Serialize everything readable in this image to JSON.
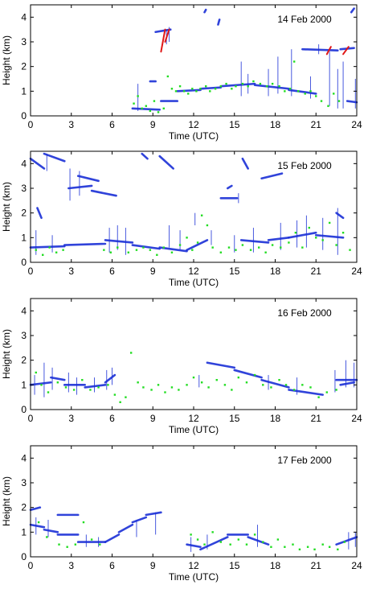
{
  "chart_data": [
    {
      "type": "scatter",
      "date_label": "14 Feb 2000",
      "xlabel": "Time (UTC)",
      "ylabel": "Height (km)",
      "xlim": [
        0,
        24
      ],
      "ylim": [
        0,
        4.5
      ],
      "xticks": [
        0,
        3,
        6,
        9,
        12,
        15,
        18,
        21,
        24
      ],
      "yticks": [
        0,
        1,
        2,
        3,
        4
      ],
      "colors": {
        "cloud": "#1a2fd6",
        "green": "#22dd22",
        "red": "#e01818",
        "axis": "#000000"
      },
      "cloud_segments": [
        [
          7.5,
          0.3,
          9.5,
          0.25
        ],
        [
          9.6,
          0.6,
          10.8,
          0.6
        ],
        [
          9.2,
          3.4,
          10.3,
          3.5
        ],
        [
          8.8,
          1.4,
          9.2,
          1.4
        ],
        [
          10.8,
          1.0,
          12.5,
          1.05
        ],
        [
          12.5,
          1.1,
          14.0,
          1.15
        ],
        [
          14.0,
          1.2,
          16.5,
          1.3
        ],
        [
          16.5,
          1.25,
          19.0,
          1.1
        ],
        [
          19.0,
          1.05,
          21.0,
          0.9
        ],
        [
          20.0,
          2.7,
          22.6,
          2.65
        ],
        [
          22.8,
          2.7,
          23.8,
          2.75
        ],
        [
          23.3,
          0.6,
          24.0,
          0.55
        ],
        [
          12.8,
          4.2,
          12.9,
          4.3
        ],
        [
          13.8,
          3.7,
          13.9,
          3.9
        ],
        [
          23.6,
          4.2,
          23.8,
          4.35
        ]
      ],
      "cloud_columns": [
        [
          7.9,
          0.2,
          1.3
        ],
        [
          10.2,
          3.0,
          3.6
        ],
        [
          10.0,
          2.9,
          3.5
        ],
        [
          15.5,
          0.8,
          2.2
        ],
        [
          16.0,
          0.9,
          1.7
        ],
        [
          17.5,
          0.8,
          1.9
        ],
        [
          18.2,
          0.9,
          2.4
        ],
        [
          19.2,
          0.8,
          2.7
        ],
        [
          20.6,
          0.7,
          1.6
        ],
        [
          22.0,
          0.4,
          2.6
        ],
        [
          22.6,
          0.3,
          1.9
        ],
        [
          23.0,
          0.3,
          2.2
        ],
        [
          21.2,
          2.5,
          2.9
        ],
        [
          23.9,
          0.3,
          1.5
        ]
      ],
      "red_segments": [
        [
          9.6,
          2.6,
          9.9,
          3.5
        ],
        [
          9.9,
          3.0,
          10.2,
          3.5
        ],
        [
          21.8,
          2.5,
          22.1,
          2.8
        ],
        [
          23.0,
          2.5,
          23.4,
          2.8
        ]
      ],
      "green_points": [
        [
          7.6,
          0.5
        ],
        [
          7.9,
          0.8
        ],
        [
          8.2,
          0.3
        ],
        [
          8.5,
          0.4
        ],
        [
          8.8,
          0.2
        ],
        [
          9.1,
          0.6
        ],
        [
          9.4,
          0.15
        ],
        [
          9.8,
          0.3
        ],
        [
          10.1,
          1.6
        ],
        [
          10.4,
          1.1
        ],
        [
          10.7,
          1.0
        ],
        [
          11.0,
          1.2
        ],
        [
          11.3,
          1.0
        ],
        [
          11.6,
          0.9
        ],
        [
          11.9,
          1.1
        ],
        [
          12.2,
          1.0
        ],
        [
          12.5,
          1.1
        ],
        [
          12.9,
          1.2
        ],
        [
          13.2,
          1.0
        ],
        [
          13.6,
          1.1
        ],
        [
          14.0,
          1.2
        ],
        [
          14.4,
          1.3
        ],
        [
          14.8,
          1.1
        ],
        [
          15.1,
          1.2
        ],
        [
          15.6,
          1.3
        ],
        [
          16.0,
          1.2
        ],
        [
          16.4,
          1.4
        ],
        [
          16.9,
          1.3
        ],
        [
          17.4,
          1.2
        ],
        [
          17.8,
          1.3
        ],
        [
          18.3,
          1.2
        ],
        [
          18.7,
          1.0
        ],
        [
          19.1,
          1.1
        ],
        [
          19.4,
          2.2
        ],
        [
          19.7,
          1.0
        ],
        [
          20.2,
          0.9
        ],
        [
          20.6,
          1.0
        ],
        [
          21.0,
          0.8
        ],
        [
          21.4,
          0.6
        ],
        [
          21.9,
          0.4
        ],
        [
          22.3,
          0.9
        ],
        [
          22.7,
          0.6
        ]
      ]
    },
    {
      "type": "scatter",
      "date_label": "15 Feb 2000",
      "xlabel": "Time (UTC)",
      "ylabel": "Height (km)",
      "xlim": [
        0,
        24
      ],
      "ylim": [
        0,
        4.5
      ],
      "xticks": [
        0,
        3,
        6,
        9,
        12,
        15,
        18,
        21,
        24
      ],
      "yticks": [
        0,
        1,
        2,
        3,
        4
      ],
      "colors": {
        "cloud": "#1a2fd6",
        "green": "#22dd22",
        "red": "#e01818",
        "axis": "#000000"
      },
      "cloud_segments": [
        [
          0.0,
          4.2,
          1.0,
          3.8
        ],
        [
          1.0,
          4.4,
          2.5,
          4.1
        ],
        [
          2.8,
          3.0,
          4.5,
          3.1
        ],
        [
          4.5,
          2.9,
          6.3,
          2.7
        ],
        [
          3.5,
          3.5,
          5.0,
          3.3
        ],
        [
          0.5,
          2.2,
          0.8,
          1.8
        ],
        [
          9.5,
          4.3,
          10.5,
          3.8
        ],
        [
          14.0,
          2.6,
          15.2,
          2.6
        ],
        [
          17.0,
          3.4,
          18.5,
          3.6
        ],
        [
          0.0,
          0.6,
          2.5,
          0.65
        ],
        [
          2.5,
          0.7,
          5.5,
          0.75
        ],
        [
          5.5,
          0.9,
          7.5,
          0.8
        ],
        [
          7.5,
          0.7,
          9.5,
          0.55
        ],
        [
          9.5,
          0.6,
          11.5,
          0.45
        ],
        [
          11.5,
          0.5,
          13.0,
          0.9
        ],
        [
          15.5,
          0.9,
          17.5,
          0.8
        ],
        [
          17.5,
          0.9,
          19.0,
          1.0
        ],
        [
          19.0,
          1.0,
          21.0,
          1.2
        ],
        [
          21.0,
          1.1,
          23.0,
          1.0
        ],
        [
          14.5,
          3.0,
          14.8,
          3.1
        ],
        [
          8.2,
          4.4,
          8.6,
          4.2
        ],
        [
          15.6,
          4.2,
          16.0,
          3.8
        ],
        [
          22.5,
          2.0,
          23.0,
          1.8
        ]
      ],
      "cloud_columns": [
        [
          0.4,
          0.3,
          1.3
        ],
        [
          1.6,
          0.4,
          1.1
        ],
        [
          2.9,
          2.5,
          3.8
        ],
        [
          3.6,
          2.7,
          3.7
        ],
        [
          5.8,
          0.4,
          1.4
        ],
        [
          6.4,
          0.5,
          1.5
        ],
        [
          7.0,
          0.3,
          1.4
        ],
        [
          10.2,
          0.6,
          1.5
        ],
        [
          11.0,
          0.5,
          1.3
        ],
        [
          13.3,
          0.7,
          1.3
        ],
        [
          15.0,
          0.4,
          1.1
        ],
        [
          16.4,
          0.4,
          1.4
        ],
        [
          18.4,
          0.5,
          1.6
        ],
        [
          19.6,
          0.6,
          1.7
        ],
        [
          20.3,
          0.6,
          1.9
        ],
        [
          21.5,
          0.5,
          1.8
        ],
        [
          22.6,
          0.3,
          2.2
        ],
        [
          1.2,
          3.7,
          4.4
        ],
        [
          15.3,
          2.4,
          2.8
        ],
        [
          12.1,
          1.5,
          2.0
        ]
      ],
      "red_segments": [],
      "green_points": [
        [
          0.4,
          0.5
        ],
        [
          0.9,
          0.3
        ],
        [
          1.4,
          0.6
        ],
        [
          1.9,
          0.4
        ],
        [
          2.4,
          0.5
        ],
        [
          5.4,
          0.5
        ],
        [
          5.9,
          0.4
        ],
        [
          6.4,
          0.6
        ],
        [
          7.2,
          0.4
        ],
        [
          7.8,
          0.5
        ],
        [
          8.3,
          0.6
        ],
        [
          8.8,
          0.5
        ],
        [
          9.3,
          0.3
        ],
        [
          9.8,
          0.6
        ],
        [
          10.4,
          0.4
        ],
        [
          11.0,
          0.7
        ],
        [
          11.5,
          1.0
        ],
        [
          11.9,
          0.5
        ],
        [
          12.3,
          0.8
        ],
        [
          12.6,
          1.9
        ],
        [
          13.0,
          1.5
        ],
        [
          13.4,
          0.6
        ],
        [
          14.0,
          0.4
        ],
        [
          14.6,
          0.6
        ],
        [
          15.1,
          0.5
        ],
        [
          15.6,
          0.7
        ],
        [
          16.2,
          0.5
        ],
        [
          16.8,
          0.6
        ],
        [
          17.3,
          0.4
        ],
        [
          17.8,
          0.7
        ],
        [
          18.4,
          0.6
        ],
        [
          19.0,
          0.8
        ],
        [
          19.5,
          1.2
        ],
        [
          20.0,
          0.6
        ],
        [
          20.5,
          1.4
        ],
        [
          21.0,
          1.0
        ],
        [
          21.5,
          0.9
        ],
        [
          22.0,
          1.6
        ],
        [
          22.5,
          0.7
        ],
        [
          23.0,
          1.2
        ],
        [
          23.5,
          0.5
        ]
      ]
    },
    {
      "type": "scatter",
      "date_label": "16 Feb 2000",
      "xlabel": "Time (UTC)",
      "ylabel": "Height (km)",
      "xlim": [
        0,
        24
      ],
      "ylim": [
        0,
        4.5
      ],
      "xticks": [
        0,
        3,
        6,
        9,
        12,
        15,
        18,
        21,
        24
      ],
      "yticks": [
        0,
        1,
        2,
        3,
        4
      ],
      "colors": {
        "cloud": "#1a2fd6",
        "green": "#22dd22",
        "red": "#e01818",
        "axis": "#000000"
      },
      "cloud_segments": [
        [
          0.0,
          1.0,
          1.5,
          1.1
        ],
        [
          1.5,
          1.3,
          2.5,
          1.2
        ],
        [
          2.5,
          1.0,
          4.0,
          1.0
        ],
        [
          4.0,
          0.9,
          5.5,
          1.0
        ],
        [
          5.5,
          1.1,
          6.2,
          1.4
        ],
        [
          13.0,
          1.9,
          15.0,
          1.7
        ],
        [
          15.0,
          1.6,
          17.0,
          1.3
        ],
        [
          17.0,
          1.2,
          19.0,
          0.9
        ],
        [
          19.0,
          0.8,
          21.5,
          0.6
        ],
        [
          22.5,
          1.2,
          24.0,
          1.2
        ],
        [
          22.8,
          1.0,
          23.8,
          1.1
        ]
      ],
      "cloud_columns": [
        [
          0.3,
          0.6,
          1.4
        ],
        [
          1.0,
          0.5,
          1.9
        ],
        [
          1.6,
          0.8,
          1.7
        ],
        [
          2.8,
          0.7,
          1.5
        ],
        [
          3.4,
          0.6,
          1.3
        ],
        [
          4.7,
          0.7,
          1.3
        ],
        [
          5.6,
          0.8,
          1.6
        ],
        [
          6.0,
          1.0,
          1.7
        ],
        [
          12.4,
          0.9,
          1.4
        ],
        [
          17.5,
          0.8,
          1.4
        ],
        [
          19.6,
          0.6,
          1.3
        ],
        [
          22.4,
          0.7,
          1.6
        ],
        [
          23.2,
          0.9,
          2.0
        ],
        [
          23.8,
          0.9,
          1.9
        ]
      ],
      "red_segments": [],
      "green_points": [
        [
          0.4,
          1.5
        ],
        [
          0.8,
          1.0
        ],
        [
          1.3,
          0.7
        ],
        [
          2.0,
          1.1
        ],
        [
          2.6,
          0.9
        ],
        [
          3.2,
          0.8
        ],
        [
          3.8,
          1.2
        ],
        [
          4.4,
          0.8
        ],
        [
          5.0,
          0.9
        ],
        [
          5.7,
          1.0
        ],
        [
          6.2,
          0.6
        ],
        [
          6.6,
          0.3
        ],
        [
          7.0,
          0.5
        ],
        [
          7.4,
          2.3
        ],
        [
          7.9,
          1.1
        ],
        [
          8.3,
          0.9
        ],
        [
          8.9,
          0.8
        ],
        [
          9.4,
          1.0
        ],
        [
          9.9,
          0.7
        ],
        [
          10.4,
          0.9
        ],
        [
          10.9,
          0.8
        ],
        [
          11.5,
          1.0
        ],
        [
          12.0,
          1.3
        ],
        [
          12.6,
          1.1
        ],
        [
          13.1,
          0.9
        ],
        [
          13.7,
          1.2
        ],
        [
          14.3,
          1.0
        ],
        [
          14.8,
          0.8
        ],
        [
          15.3,
          1.3
        ],
        [
          15.9,
          1.1
        ],
        [
          16.5,
          1.4
        ],
        [
          17.1,
          1.0
        ],
        [
          17.7,
          0.9
        ],
        [
          18.3,
          1.2
        ],
        [
          18.8,
          1.0
        ],
        [
          19.4,
          0.8
        ],
        [
          20.0,
          1.0
        ],
        [
          20.6,
          0.9
        ],
        [
          21.2,
          0.5
        ],
        [
          21.8,
          0.7
        ],
        [
          22.5,
          0.8
        ]
      ]
    },
    {
      "type": "scatter",
      "date_label": "17 Feb 2000",
      "xlabel": "Time (UTC)",
      "ylabel": "Height (km)",
      "xlim": [
        0,
        24
      ],
      "ylim": [
        0,
        4.5
      ],
      "xticks": [
        0,
        3,
        6,
        9,
        12,
        15,
        18,
        21,
        24
      ],
      "yticks": [
        0,
        1,
        2,
        3,
        4
      ],
      "colors": {
        "cloud": "#1a2fd6",
        "green": "#22dd22",
        "red": "#e01818",
        "axis": "#000000"
      },
      "cloud_segments": [
        [
          0.0,
          1.9,
          0.7,
          2.0
        ],
        [
          0.0,
          1.3,
          1.0,
          1.2
        ],
        [
          1.0,
          1.1,
          2.0,
          1.0
        ],
        [
          2.0,
          1.7,
          3.5,
          1.7
        ],
        [
          2.0,
          0.9,
          3.5,
          0.9
        ],
        [
          3.5,
          0.6,
          5.5,
          0.6
        ],
        [
          5.5,
          0.6,
          6.5,
          0.9
        ],
        [
          6.5,
          1.0,
          7.5,
          1.3
        ],
        [
          7.5,
          1.4,
          8.5,
          1.6
        ],
        [
          8.5,
          1.7,
          9.6,
          1.8
        ],
        [
          11.5,
          0.5,
          12.5,
          0.4
        ],
        [
          12.5,
          0.3,
          14.5,
          0.8
        ],
        [
          14.5,
          0.9,
          16.0,
          0.9
        ],
        [
          16.0,
          0.8,
          17.5,
          0.5
        ],
        [
          22.5,
          0.5,
          24.0,
          0.8
        ]
      ],
      "cloud_columns": [
        [
          0.4,
          0.9,
          1.6
        ],
        [
          1.3,
          0.8,
          1.5
        ],
        [
          4.1,
          0.4,
          0.9
        ],
        [
          5.0,
          0.4,
          0.8
        ],
        [
          7.8,
          0.8,
          1.5
        ],
        [
          9.2,
          0.9,
          1.8
        ],
        [
          11.8,
          0.2,
          0.8
        ],
        [
          13.0,
          0.3,
          0.9
        ],
        [
          16.7,
          0.4,
          1.3
        ],
        [
          23.4,
          0.3,
          1.0
        ],
        [
          23.9,
          0.4,
          1.0
        ]
      ],
      "red_segments": [],
      "green_points": [
        [
          0.6,
          1.4
        ],
        [
          1.2,
          0.8
        ],
        [
          2.1,
          0.5
        ],
        [
          2.7,
          0.4
        ],
        [
          3.3,
          0.5
        ],
        [
          3.9,
          1.4
        ],
        [
          4.5,
          0.7
        ],
        [
          5.1,
          0.5
        ],
        [
          11.8,
          0.9
        ],
        [
          12.3,
          0.7
        ],
        [
          12.8,
          0.5
        ],
        [
          13.4,
          1.0
        ],
        [
          14.0,
          0.6
        ],
        [
          14.7,
          0.5
        ],
        [
          15.3,
          0.7
        ],
        [
          15.9,
          0.5
        ],
        [
          16.5,
          0.9
        ],
        [
          17.1,
          0.6
        ],
        [
          17.7,
          0.4
        ],
        [
          18.2,
          0.7
        ],
        [
          18.7,
          0.4
        ],
        [
          19.3,
          0.5
        ],
        [
          19.8,
          0.3
        ],
        [
          20.4,
          0.4
        ],
        [
          20.9,
          0.3
        ],
        [
          21.5,
          0.5
        ],
        [
          22.0,
          0.4
        ],
        [
          22.6,
          0.3
        ],
        [
          23.1,
          0.6
        ]
      ]
    }
  ]
}
